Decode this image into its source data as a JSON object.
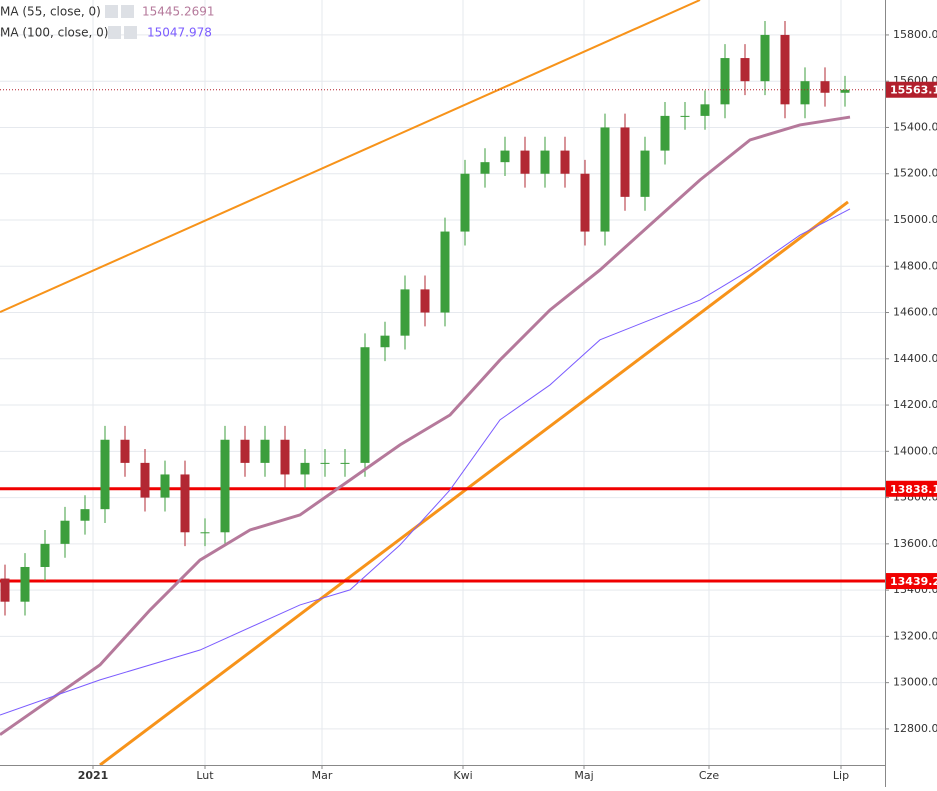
{
  "chart_data": {
    "type": "candlestick",
    "xlim": [
      -0.25,
      44
    ],
    "ylim": [
      12644,
      15951
    ],
    "grid": true,
    "up_color": "#3c9e3c",
    "down_color": "#b22833",
    "xticks": [
      {
        "value": 4.4,
        "label": "2021"
      },
      {
        "value": 10,
        "label": "Lut"
      },
      {
        "value": 15.85,
        "label": "Mar"
      },
      {
        "value": 22.9,
        "label": "Kwi"
      },
      {
        "value": 28.95,
        "label": "Maj"
      },
      {
        "value": 35.2,
        "label": "Cze"
      },
      {
        "value": 41.8,
        "label": "Lip"
      }
    ],
    "yticks": [
      {
        "value": 12800,
        "label": "12800.0"
      },
      {
        "value": 13000,
        "label": "13000.0"
      },
      {
        "value": 13200,
        "label": "13200.0"
      },
      {
        "value": 13400,
        "label": "13400.0"
      },
      {
        "value": 13600,
        "label": "13600.0"
      },
      {
        "value": 13800,
        "label": "13800.0"
      },
      {
        "value": 14000,
        "label": "14000.0"
      },
      {
        "value": 14200,
        "label": "14200.0"
      },
      {
        "value": 14400,
        "label": "14400.0"
      },
      {
        "value": 14600,
        "label": "14600.0"
      },
      {
        "value": 14800,
        "label": "14800.0"
      },
      {
        "value": 15000,
        "label": "15000.0"
      },
      {
        "value": 15200,
        "label": "15200.0"
      },
      {
        "value": 15400,
        "label": "15400.0"
      },
      {
        "value": 15600,
        "label": "15600.0"
      },
      {
        "value": 15800,
        "label": "15800.0"
      }
    ],
    "open": [
      13450,
      13350,
      13500,
      13600,
      13700,
      13750,
      14050,
      13950,
      13800,
      13900,
      13650,
      13650,
      14050,
      13950,
      14050,
      13900,
      13950,
      13950,
      13950,
      14450,
      14500,
      14700,
      14600,
      14950,
      15200,
      15250,
      15300,
      15200,
      15300,
      15200,
      14950,
      15400,
      15100,
      15300,
      15450,
      15450,
      15500,
      15700,
      15600,
      15800,
      15500,
      15600,
      15550
    ],
    "high": [
      13510,
      13560,
      13660,
      13760,
      13810,
      14110,
      14110,
      14010,
      13960,
      13960,
      13710,
      14110,
      14110,
      14110,
      14110,
      14010,
      14010,
      14010,
      14510,
      14560,
      14760,
      14760,
      15010,
      15260,
      15310,
      15360,
      15360,
      15360,
      15360,
      15260,
      15460,
      15460,
      15360,
      15510,
      15510,
      15560,
      15760,
      15760,
      15860,
      15860,
      15660,
      15660,
      15623
    ],
    "low": [
      13290,
      13290,
      13440,
      13540,
      13640,
      13690,
      13890,
      13740,
      13740,
      13590,
      13590,
      13590,
      13890,
      13890,
      13840,
      13840,
      13890,
      13890,
      13890,
      14390,
      14440,
      14540,
      14540,
      14890,
      15140,
      15190,
      15140,
      15140,
      15140,
      14890,
      14890,
      15040,
      15040,
      15240,
      15390,
      15390,
      15440,
      15540,
      15540,
      15440,
      15440,
      15490,
      15490
    ],
    "close": [
      13350,
      13500,
      13600,
      13700,
      13750,
      14050,
      13950,
      13800,
      13900,
      13650,
      13650,
      14050,
      13950,
      14050,
      13900,
      13950,
      13950,
      13950,
      14450,
      14500,
      14700,
      14600,
      14950,
      15200,
      15250,
      15300,
      15200,
      15300,
      15200,
      14950,
      15400,
      15100,
      15300,
      15450,
      15450,
      15500,
      15700,
      15600,
      15800,
      15500,
      15600,
      15550,
      15563
    ],
    "series": [
      {
        "name": "MA (55, close, 0)",
        "color": "#b5799b",
        "width": 3,
        "last": 15445.2691,
        "x": [
          -0.25,
          4.75,
          7.25,
          9.75,
          12.25,
          14.75,
          17.25,
          19.75,
          22.25,
          24.75,
          27.25,
          29.75,
          32.25,
          34.75,
          37.25,
          39.75,
          42.25
        ],
        "values": [
          12775,
          13077,
          13314,
          13530,
          13660,
          13725,
          13876,
          14028,
          14157,
          14395,
          14611,
          14784,
          14979,
          15173,
          15346,
          15411,
          15445
        ]
      },
      {
        "name": "MA (100, close, 0)",
        "color": "#7b5cff",
        "width": 1,
        "last": 15047.978,
        "x": [
          -0.25,
          4.75,
          9.75,
          14.75,
          17.25,
          19.75,
          22.25,
          24.75,
          27.25,
          29.75,
          32.25,
          34.75,
          37.25,
          39.75,
          42.25
        ],
        "values": [
          12860,
          13012,
          13141,
          13336,
          13401,
          13595,
          13833,
          14136,
          14287,
          14482,
          14568,
          14654,
          14784,
          14935,
          15048
        ]
      }
    ],
    "trendlines": [
      {
        "color": "#f7931a",
        "width": 2,
        "x": [
          -0.25,
          34.75
        ],
        "values": [
          14602,
          15951
        ]
      },
      {
        "color": "#f7931a",
        "width": 3,
        "x": [
          4.75,
          42.15
        ],
        "values": [
          12644,
          15078
        ]
      }
    ],
    "levels": [
      {
        "value": 13838.1,
        "color": "#f00000"
      },
      {
        "value": 13439.2,
        "color": "#f00000"
      }
    ],
    "last_price": 15563.1,
    "last_price_color": "#b2202d"
  }
}
